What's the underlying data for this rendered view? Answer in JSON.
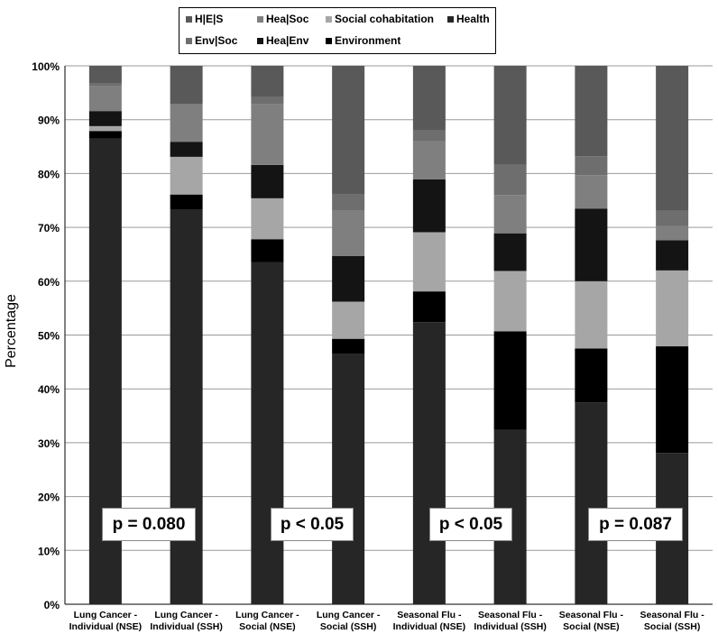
{
  "chart_data": {
    "type": "bar",
    "stacked": true,
    "ylabel": "Percentage",
    "ylim": [
      0,
      100
    ],
    "yticks": [
      "0%",
      "10%",
      "20%",
      "30%",
      "40%",
      "50%",
      "60%",
      "70%",
      "80%",
      "90%",
      "100%"
    ],
    "grid": true,
    "legend_position": "top-center",
    "categories": [
      [
        "Lung Cancer -",
        "Individual (NSE)"
      ],
      [
        "Lung Cancer -",
        "Individual (SSH)"
      ],
      [
        "Lung Cancer -",
        "Social (NSE)"
      ],
      [
        "Lung Cancer -",
        "Social (SSH)"
      ],
      [
        "Seasonal Flu -",
        "Individual (NSE)"
      ],
      [
        "Seasonal Flu -",
        "Individual (SSH)"
      ],
      [
        "Seasonal Flu -",
        "Social (NSE)"
      ],
      [
        "Seasonal Flu -",
        "Social (SSH)"
      ]
    ],
    "series": [
      {
        "name": "Health",
        "color": "#262626",
        "values": [
          86.5,
          73.3,
          63.5,
          46.5,
          52.4,
          32.4,
          37.5,
          28.1
        ]
      },
      {
        "name": "Environment",
        "color": "#000000",
        "values": [
          1.4,
          2.8,
          4.3,
          2.8,
          5.7,
          18.3,
          10.0,
          19.8
        ]
      },
      {
        "name": "Social cohabitation",
        "color": "#a6a6a6",
        "values": [
          0.9,
          7.0,
          7.6,
          6.9,
          11.0,
          11.2,
          12.5,
          14.1
        ]
      },
      {
        "name": "Hea|Env",
        "color": "#141414",
        "values": [
          2.8,
          2.8,
          6.2,
          8.5,
          9.8,
          7.0,
          13.5,
          5.6
        ]
      },
      {
        "name": "Hea|Soc",
        "color": "#7f7f7f",
        "values": [
          4.6,
          7.0,
          11.3,
          8.5,
          7.1,
          7.1,
          6.2,
          2.6
        ]
      },
      {
        "name": "Env|Soc",
        "color": "#6e6e6e",
        "values": [
          0.5,
          0.0,
          1.3,
          2.9,
          2.0,
          5.6,
          3.5,
          2.9
        ]
      },
      {
        "name": "H|E|S",
        "color": "#595959",
        "values": [
          3.3,
          7.1,
          5.8,
          23.9,
          12.0,
          18.4,
          16.8,
          26.9
        ]
      }
    ],
    "legend": [
      {
        "name": "H|E|S",
        "color": "#595959"
      },
      {
        "name": "Hea|Soc",
        "color": "#7f7f7f"
      },
      {
        "name": "Social cohabitation",
        "color": "#a6a6a6"
      },
      {
        "name": "Health",
        "color": "#262626"
      },
      {
        "name": "Env|Soc",
        "color": "#6e6e6e"
      },
      {
        "name": "Hea|Env",
        "color": "#141414"
      },
      {
        "name": "Environment",
        "color": "#000000"
      }
    ],
    "annotations": [
      "p = 0.080",
      "p < 0.05",
      "p < 0.05",
      "p = 0.087"
    ]
  }
}
